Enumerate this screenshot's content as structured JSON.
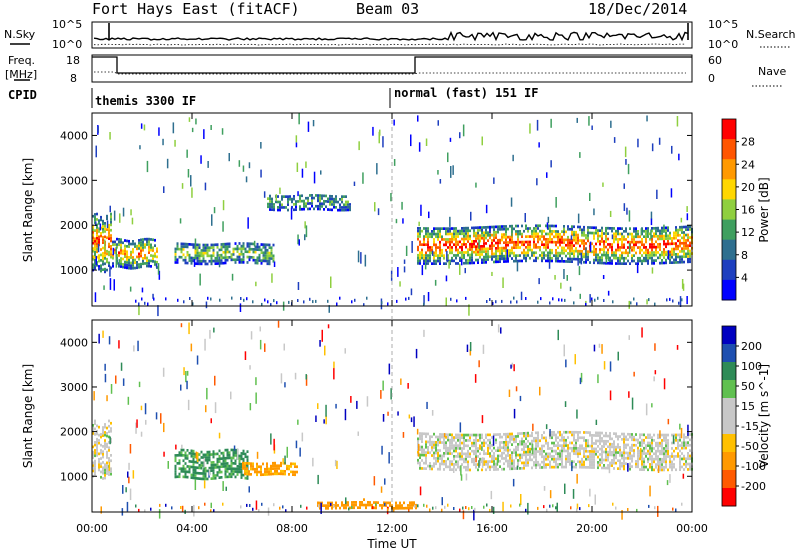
{
  "header": {
    "title": "Fort Hays East (fitACF)",
    "beam": "Beam 03",
    "date": "18/Dec/2014"
  },
  "strip_labels": {
    "nsky": "N.Sky",
    "nsearch": "N.Search",
    "freq_top": "Freq.",
    "freq_unit": "[MHz]",
    "nave": "Nave",
    "cpid": "CPID",
    "nsky_ticks": [
      "10^5",
      "10^0"
    ],
    "nsearch_ticks": [
      "10^5",
      "10^0"
    ],
    "freq_ticks": [
      "18",
      "8"
    ],
    "nave_ticks": [
      "60",
      "0"
    ]
  },
  "cpid_labels": [
    "themis 3300 IF",
    "normal (fast) 151 IF"
  ],
  "colors": {
    "power_scale": [
      "#0000ff",
      "#1e3fbf",
      "#2e6f8f",
      "#3f9f5f",
      "#8fcf3f",
      "#ffd700",
      "#ff9900",
      "#ff5500",
      "#ff0000"
    ],
    "velocity_scale": [
      "#ff0000",
      "#ff5a00",
      "#ff9900",
      "#ffc000",
      "#c8c8c8",
      "#c8c8c8",
      "#60c050",
      "#2e8b57",
      "#1e4fb0",
      "#0000c0"
    ]
  },
  "chart_data": [
    {
      "type": "heatmap",
      "name": "power-panel",
      "ylabel": "Slant Range [km]",
      "ylim": [
        200,
        4500
      ],
      "yticks": [
        1000,
        2000,
        3000,
        4000
      ],
      "colorbar_label": "Power [dB]",
      "colorbar_ticks": [
        "4",
        "8",
        "12",
        "16",
        "20",
        "24",
        "28"
      ],
      "echo_regions": [
        {
          "t_start": 0.0,
          "t_end": 0.8,
          "range_low": 900,
          "range_high": 2300,
          "level": 0.7
        },
        {
          "t_start": 0.8,
          "t_end": 2.6,
          "range_low": 1000,
          "range_high": 1700,
          "level": 0.6
        },
        {
          "t_start": 3.3,
          "t_end": 7.3,
          "range_low": 1100,
          "range_high": 1600,
          "level": 0.35
        },
        {
          "t_start": 7.0,
          "t_end": 10.3,
          "range_low": 2300,
          "range_high": 2700,
          "level": 0.2
        },
        {
          "t_start": 13.0,
          "t_end": 24.0,
          "range_low": 1100,
          "range_high": 2000,
          "level": 0.75
        }
      ]
    },
    {
      "type": "heatmap",
      "name": "velocity-panel",
      "ylabel": "Slant Range [km]",
      "ylim": [
        200,
        4500
      ],
      "yticks": [
        1000,
        2000,
        3000,
        4000
      ],
      "colorbar_label": "Velocity [m s^-1]",
      "colorbar_ticks": [
        "200",
        "100",
        "50",
        "15",
        "-15",
        "-50",
        "-100",
        "-200"
      ],
      "echo_regions": [
        {
          "t_start": 0.0,
          "t_end": 0.8,
          "range_low": 900,
          "range_high": 2300,
          "vel": 0
        },
        {
          "t_start": 3.3,
          "t_end": 6.2,
          "range_low": 900,
          "range_high": 1600,
          "vel": 40
        },
        {
          "t_start": 6.0,
          "t_end": 8.2,
          "range_low": 1000,
          "range_high": 1300,
          "vel": -60
        },
        {
          "t_start": 13.0,
          "t_end": 24.0,
          "range_low": 1100,
          "range_high": 2000,
          "vel": 0
        },
        {
          "t_start": 9.0,
          "t_end": 13.0,
          "range_low": 250,
          "range_high": 450,
          "vel": -70
        }
      ]
    }
  ],
  "x_axis": {
    "label": "Time UT",
    "tick_labels": [
      "00:00",
      "04:00",
      "08:00",
      "12:00",
      "16:00",
      "20:00",
      "00:00"
    ],
    "tick_values": [
      0,
      4,
      8,
      12,
      16,
      20,
      24
    ]
  }
}
